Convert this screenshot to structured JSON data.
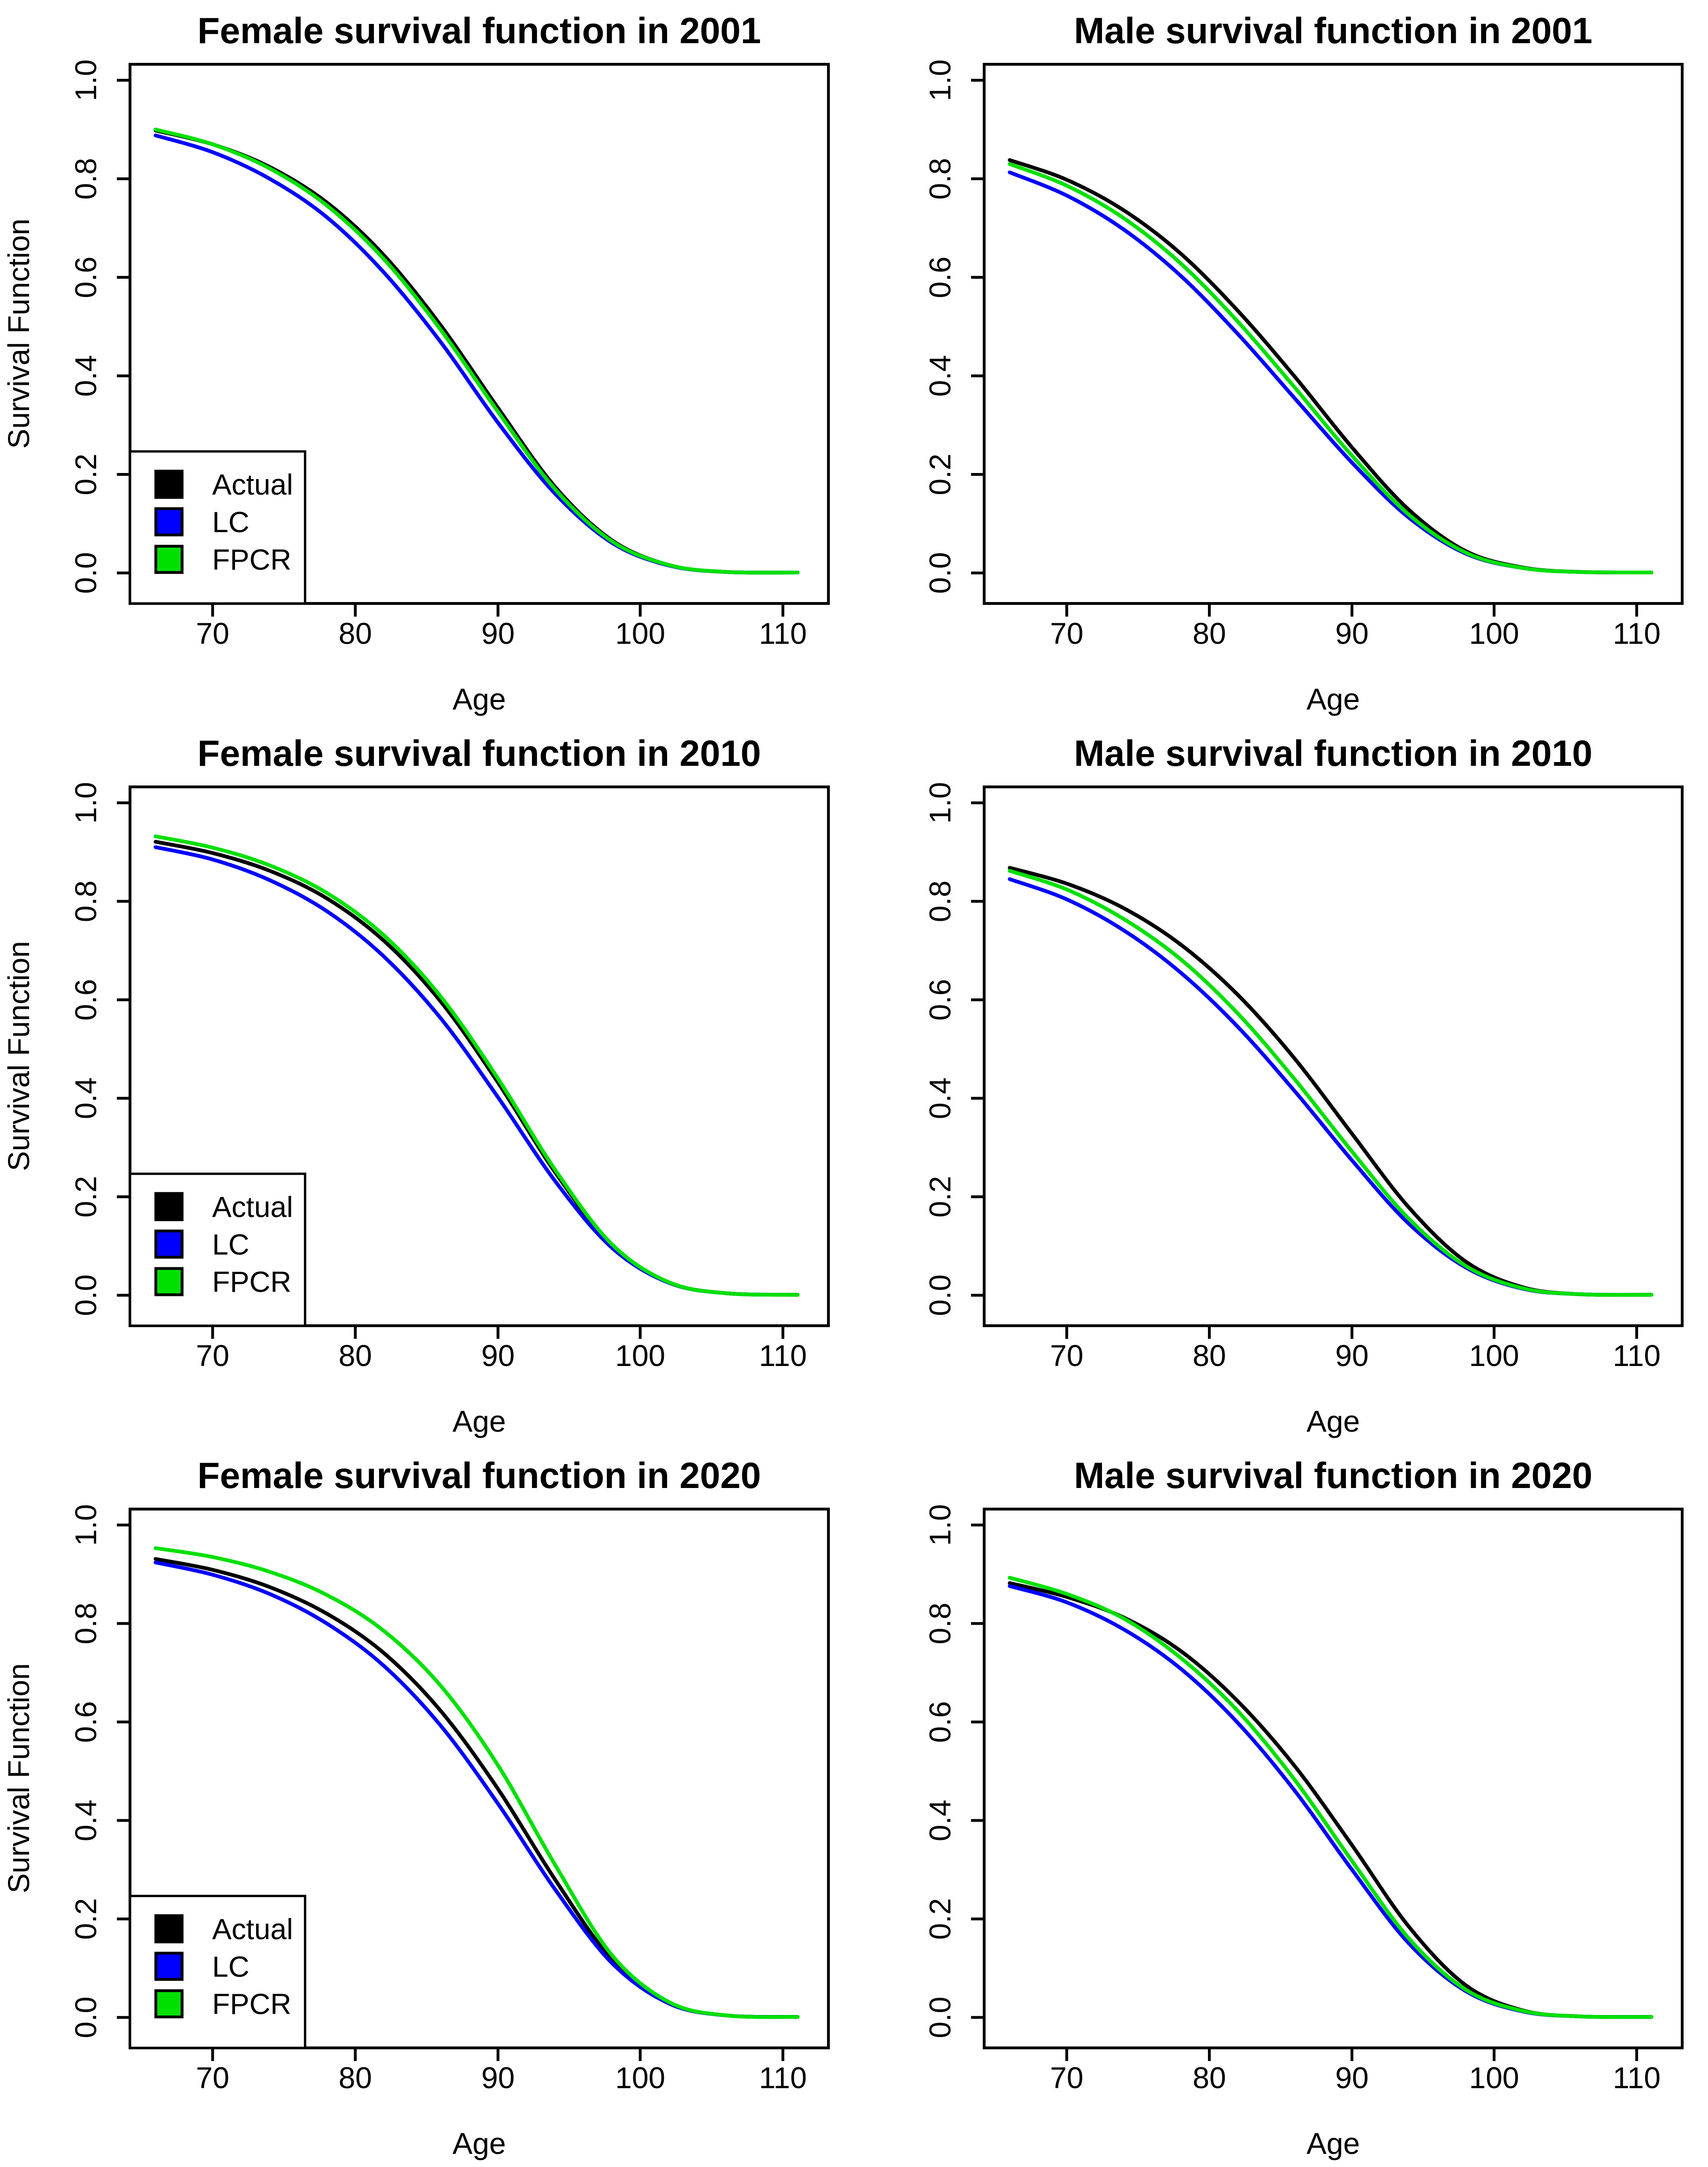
{
  "page": {
    "background": "#ffffff"
  },
  "colors": {
    "actual": "#000000",
    "lc": "#0000ff",
    "fpcr": "#00e000",
    "frame": "#000000"
  },
  "axes": {
    "x_label": "Age",
    "y_label": "Survival Function",
    "x_ticks": [
      "70",
      "80",
      "90",
      "100",
      "110"
    ],
    "y_ticks": [
      "0.0",
      "0.2",
      "0.4",
      "0.6",
      "0.8",
      "1.0"
    ],
    "x_tick_values": [
      70,
      80,
      90,
      100,
      110
    ],
    "y_tick_values": [
      0.0,
      0.2,
      0.4,
      0.6,
      0.8,
      1.0
    ],
    "x_range_shown": [
      64.2,
      112.8
    ],
    "y_range_shown": [
      -0.06,
      1.03
    ]
  },
  "legend": {
    "position": "bottomleft",
    "items": [
      {
        "label": "Actual",
        "color": "#000000"
      },
      {
        "label": "LC",
        "color": "#0000ff"
      },
      {
        "label": "FPCR",
        "color": "#00e000"
      }
    ]
  },
  "chart_data": [
    {
      "type": "line",
      "title": "Female survival function in 2001",
      "xlabel": "Age",
      "ylabel": "Survival Function",
      "xlim": [
        66,
        111
      ],
      "ylim": [
        0,
        1
      ],
      "grid": false,
      "legend_shown": true,
      "x": [
        66,
        70,
        74,
        78,
        82,
        86,
        90,
        94,
        98,
        102,
        106,
        111
      ],
      "series": [
        {
          "name": "Actual",
          "color": "#000000",
          "values": [
            0.898,
            0.87,
            0.824,
            0.752,
            0.645,
            0.502,
            0.335,
            0.175,
            0.066,
            0.016,
            0.002,
            0.001
          ]
        },
        {
          "name": "LC",
          "color": "#0000ff",
          "values": [
            0.888,
            0.854,
            0.8,
            0.722,
            0.61,
            0.468,
            0.305,
            0.161,
            0.061,
            0.015,
            0.002,
            0.001
          ]
        },
        {
          "name": "FPCR",
          "color": "#00e000",
          "values": [
            0.9,
            0.87,
            0.821,
            0.746,
            0.637,
            0.493,
            0.327,
            0.17,
            0.064,
            0.016,
            0.002,
            0.001
          ]
        }
      ]
    },
    {
      "type": "line",
      "title": "Male survival function in 2001",
      "xlabel": "Age",
      "ylabel": "",
      "xlim": [
        66,
        111
      ],
      "ylim": [
        0,
        1
      ],
      "grid": false,
      "legend_shown": false,
      "x": [
        66,
        70,
        74,
        78,
        82,
        86,
        90,
        94,
        98,
        102,
        106,
        111
      ],
      "series": [
        {
          "name": "Actual",
          "color": "#000000",
          "values": [
            0.838,
            0.798,
            0.736,
            0.648,
            0.532,
            0.398,
            0.255,
            0.128,
            0.044,
            0.011,
            0.002,
            0.001
          ]
        },
        {
          "name": "LC",
          "color": "#0000ff",
          "values": [
            0.813,
            0.766,
            0.697,
            0.603,
            0.485,
            0.354,
            0.224,
            0.112,
            0.039,
            0.01,
            0.002,
            0.001
          ]
        },
        {
          "name": "FPCR",
          "color": "#00e000",
          "values": [
            0.83,
            0.786,
            0.72,
            0.628,
            0.51,
            0.376,
            0.238,
            0.118,
            0.041,
            0.01,
            0.002,
            0.001
          ]
        }
      ]
    },
    {
      "type": "line",
      "title": "Female survival function in 2010",
      "xlabel": "Age",
      "ylabel": "Survival Function",
      "xlim": [
        66,
        111
      ],
      "ylim": [
        0,
        1
      ],
      "grid": false,
      "legend_shown": true,
      "x": [
        66,
        70,
        74,
        78,
        82,
        86,
        90,
        94,
        98,
        102,
        106,
        111
      ],
      "series": [
        {
          "name": "Actual",
          "color": "#000000",
          "values": [
            0.921,
            0.898,
            0.862,
            0.806,
            0.72,
            0.596,
            0.432,
            0.25,
            0.101,
            0.026,
            0.004,
            0.001
          ]
        },
        {
          "name": "LC",
          "color": "#0000ff",
          "values": [
            0.91,
            0.885,
            0.843,
            0.78,
            0.688,
            0.562,
            0.402,
            0.232,
            0.096,
            0.025,
            0.004,
            0.001
          ]
        },
        {
          "name": "FPCR",
          "color": "#00e000",
          "values": [
            0.932,
            0.909,
            0.873,
            0.817,
            0.731,
            0.606,
            0.44,
            0.255,
            0.103,
            0.026,
            0.004,
            0.001
          ]
        }
      ]
    },
    {
      "type": "line",
      "title": "Male survival function in 2010",
      "xlabel": "Age",
      "ylabel": "",
      "xlim": [
        66,
        111
      ],
      "ylim": [
        0,
        1
      ],
      "grid": false,
      "legend_shown": false,
      "x": [
        66,
        70,
        74,
        78,
        82,
        86,
        90,
        94,
        98,
        102,
        106,
        111
      ],
      "series": [
        {
          "name": "Actual",
          "color": "#000000",
          "values": [
            0.868,
            0.836,
            0.786,
            0.712,
            0.61,
            0.48,
            0.328,
            0.178,
            0.068,
            0.016,
            0.002,
            0.001
          ]
        },
        {
          "name": "LC",
          "color": "#0000ff",
          "values": [
            0.845,
            0.804,
            0.741,
            0.655,
            0.545,
            0.414,
            0.274,
            0.145,
            0.056,
            0.013,
            0.002,
            0.001
          ]
        },
        {
          "name": "FPCR",
          "color": "#00e000",
          "values": [
            0.862,
            0.824,
            0.764,
            0.682,
            0.572,
            0.438,
            0.292,
            0.155,
            0.059,
            0.014,
            0.002,
            0.001
          ]
        }
      ]
    },
    {
      "type": "line",
      "title": "Female survival function in 2020",
      "xlabel": "Age",
      "ylabel": "Survival Function",
      "xlim": [
        66,
        111
      ],
      "ylim": [
        0,
        1
      ],
      "grid": false,
      "legend_shown": true,
      "x": [
        66,
        70,
        74,
        78,
        82,
        86,
        90,
        94,
        98,
        102,
        106,
        111
      ],
      "series": [
        {
          "name": "Actual",
          "color": "#000000",
          "values": [
            0.931,
            0.909,
            0.874,
            0.82,
            0.74,
            0.622,
            0.464,
            0.28,
            0.117,
            0.029,
            0.004,
            0.001
          ]
        },
        {
          "name": "LC",
          "color": "#0000ff",
          "values": [
            0.924,
            0.899,
            0.86,
            0.8,
            0.714,
            0.592,
            0.434,
            0.26,
            0.11,
            0.028,
            0.004,
            0.001
          ]
        },
        {
          "name": "FPCR",
          "color": "#00e000",
          "values": [
            0.953,
            0.935,
            0.905,
            0.858,
            0.785,
            0.673,
            0.512,
            0.31,
            0.126,
            0.031,
            0.004,
            0.001
          ]
        }
      ]
    },
    {
      "type": "line",
      "title": "Male survival function in 2020",
      "xlabel": "Age",
      "ylabel": "",
      "xlim": [
        66,
        111
      ],
      "ylim": [
        0,
        1
      ],
      "grid": false,
      "legend_shown": false,
      "x": [
        66,
        70,
        74,
        78,
        82,
        86,
        90,
        94,
        98,
        102,
        106,
        111
      ],
      "series": [
        {
          "name": "Actual",
          "color": "#000000",
          "values": [
            0.882,
            0.854,
            0.812,
            0.744,
            0.642,
            0.51,
            0.35,
            0.184,
            0.065,
            0.014,
            0.002,
            0.001
          ]
        },
        {
          "name": "LC",
          "color": "#0000ff",
          "values": [
            0.876,
            0.843,
            0.788,
            0.708,
            0.598,
            0.46,
            0.3,
            0.15,
            0.053,
            0.012,
            0.002,
            0.001
          ]
        },
        {
          "name": "FPCR",
          "color": "#00e000",
          "values": [
            0.893,
            0.86,
            0.81,
            0.73,
            0.622,
            0.482,
            0.318,
            0.16,
            0.056,
            0.013,
            0.002,
            0.001
          ]
        }
      ]
    }
  ]
}
